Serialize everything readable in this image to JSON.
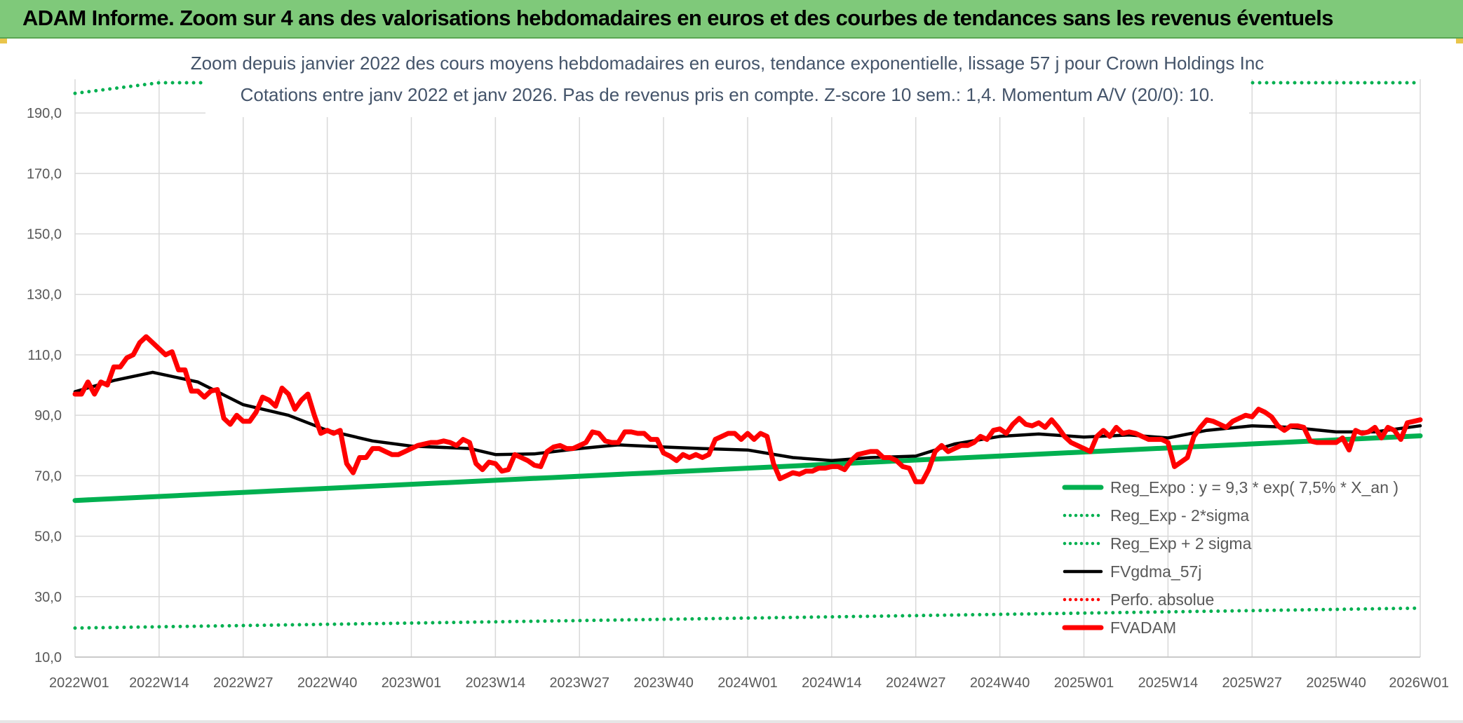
{
  "header": {
    "title": "ADAM Informe. Zoom sur 4 ans des valorisations hebdomadaires en euros et des courbes de tendances sans les revenus éventuels"
  },
  "colors": {
    "banner": "#7fc97a",
    "trend": "#00b050",
    "price": "#ff0000",
    "moving_average": "#000000",
    "grid": "#d9d9d9"
  },
  "chart_data": {
    "type": "line",
    "title_line1": "Zoom depuis janvier 2022 des cours moyens hebdomadaires en euros, tendance exponentielle, lissage 57 j pour Crown Holdings Inc",
    "title_line2": "Cotations entre janv 2022 et janv 2026. Pas de revenus pris en compte. Z-score 10 sem.: 1,4. Momentum A/V (20/0): 10.",
    "ylim": [
      10,
      200
    ],
    "y_ticks": [
      "10,0",
      "30,0",
      "50,0",
      "70,0",
      "90,0",
      "110,0",
      "130,0",
      "150,0",
      "170,0",
      "190,0"
    ],
    "x_ticks": [
      "2022W01",
      "2022W14",
      "2022W27",
      "2022W40",
      "2023W01",
      "2023W14",
      "2023W27",
      "2023W40",
      "2024W01",
      "2024W14",
      "2024W27",
      "2024W40",
      "2025W01",
      "2025W14",
      "2025W27",
      "2025W40",
      "2026W01"
    ],
    "grid": true,
    "legend_position": "bottom-right",
    "series": [
      {
        "name": "Reg_Expo : y = 9,3 * exp( 7,5% *  X_an )",
        "style": "solid-thick",
        "color": "#00b050",
        "points": [
          [
            "2022W01",
            61.8
          ],
          [
            "2026W01",
            83.2
          ]
        ]
      },
      {
        "name": "Reg_Exp - 2*sigma",
        "style": "dotted",
        "color": "#00b050",
        "points": [
          [
            "2022W01",
            19.6
          ],
          [
            "2026W01",
            26.2
          ]
        ]
      },
      {
        "name": "Reg_Exp + 2 sigma",
        "style": "dotted",
        "color": "#00b050",
        "points": [
          [
            "2022W01",
            196.5
          ],
          [
            "2022W14",
            200.0
          ],
          [
            "2026W01",
            200.0
          ]
        ]
      },
      {
        "name": "FVgdma_57j",
        "style": "solid",
        "color": "#000000",
        "points": [
          [
            "2022W01",
            97.8
          ],
          [
            "2022W07",
            101.5
          ],
          [
            "2022W13",
            104.2
          ],
          [
            "2022W20",
            101.0
          ],
          [
            "2022W27",
            93.5
          ],
          [
            "2022W34",
            90.0
          ],
          [
            "2022W40",
            85.0
          ],
          [
            "2022W47",
            81.5
          ],
          [
            "2023W01",
            79.8
          ],
          [
            "2023W10",
            79.0
          ],
          [
            "2023W14",
            77.0
          ],
          [
            "2023W20",
            77.2
          ],
          [
            "2023W27",
            79.0
          ],
          [
            "2023W33",
            80.2
          ],
          [
            "2023W40",
            79.5
          ],
          [
            "2023W46",
            79.0
          ],
          [
            "2024W01",
            78.5
          ],
          [
            "2024W08",
            76.0
          ],
          [
            "2024W14",
            75.0
          ],
          [
            "2024W20",
            76.0
          ],
          [
            "2024W27",
            76.5
          ],
          [
            "2024W33",
            80.5
          ],
          [
            "2024W40",
            83.0
          ],
          [
            "2024W46",
            83.8
          ],
          [
            "2025W01",
            82.8
          ],
          [
            "2025W08",
            83.5
          ],
          [
            "2025W14",
            82.5
          ],
          [
            "2025W20",
            85.0
          ],
          [
            "2025W27",
            86.5
          ],
          [
            "2025W33",
            86.0
          ],
          [
            "2025W40",
            84.5
          ],
          [
            "2025W46",
            84.5
          ],
          [
            "2026W01",
            86.5
          ]
        ]
      },
      {
        "name": "Perfo. absolue",
        "style": "dotted",
        "color": "#ff0000",
        "points": []
      },
      {
        "name": "FVADAM",
        "style": "solid-thick",
        "color": "#ff0000",
        "points": [
          [
            "2022W01",
            97
          ],
          [
            "2022W02",
            97
          ],
          [
            "2022W03",
            101
          ],
          [
            "2022W04",
            97
          ],
          [
            "2022W05",
            101
          ],
          [
            "2022W06",
            100
          ],
          [
            "2022W07",
            106
          ],
          [
            "2022W08",
            106
          ],
          [
            "2022W09",
            109
          ],
          [
            "2022W10",
            110
          ],
          [
            "2022W11",
            114
          ],
          [
            "2022W12",
            116
          ],
          [
            "2022W13",
            114
          ],
          [
            "2022W14",
            112
          ],
          [
            "2022W15",
            110
          ],
          [
            "2022W16",
            111
          ],
          [
            "2022W17",
            105
          ],
          [
            "2022W18",
            105
          ],
          [
            "2022W19",
            98
          ],
          [
            "2022W20",
            98
          ],
          [
            "2022W21",
            96
          ],
          [
            "2022W22",
            98
          ],
          [
            "2022W23",
            98.5
          ],
          [
            "2022W24",
            89
          ],
          [
            "2022W25",
            87
          ],
          [
            "2022W26",
            90
          ],
          [
            "2022W27",
            88
          ],
          [
            "2022W28",
            88
          ],
          [
            "2022W29",
            91
          ],
          [
            "2022W30",
            96
          ],
          [
            "2022W31",
            95
          ],
          [
            "2022W32",
            93
          ],
          [
            "2022W33",
            99
          ],
          [
            "2022W34",
            97
          ],
          [
            "2022W35",
            92
          ],
          [
            "2022W36",
            95
          ],
          [
            "2022W37",
            97
          ],
          [
            "2022W38",
            90
          ],
          [
            "2022W39",
            84
          ],
          [
            "2022W40",
            85
          ],
          [
            "2022W41",
            84
          ],
          [
            "2022W42",
            85
          ],
          [
            "2022W43",
            74
          ],
          [
            "2022W44",
            71
          ],
          [
            "2022W45",
            76
          ],
          [
            "2022W46",
            76
          ],
          [
            "2022W47",
            79
          ],
          [
            "2022W48",
            79
          ],
          [
            "2022W49",
            78
          ],
          [
            "2022W50",
            77
          ],
          [
            "2022W51",
            77
          ],
          [
            "2022W52",
            78
          ],
          [
            "2023W01",
            79
          ],
          [
            "2023W02",
            80
          ],
          [
            "2023W03",
            80.5
          ],
          [
            "2023W04",
            81
          ],
          [
            "2023W05",
            81
          ],
          [
            "2023W06",
            81.5
          ],
          [
            "2023W07",
            81
          ],
          [
            "2023W08",
            80
          ],
          [
            "2023W09",
            82
          ],
          [
            "2023W10",
            81
          ],
          [
            "2023W11",
            74
          ],
          [
            "2023W12",
            72
          ],
          [
            "2023W13",
            74.5
          ],
          [
            "2023W14",
            74
          ],
          [
            "2023W15",
            71.5
          ],
          [
            "2023W16",
            72
          ],
          [
            "2023W17",
            77
          ],
          [
            "2023W18",
            76
          ],
          [
            "2023W19",
            75
          ],
          [
            "2023W20",
            73.5
          ],
          [
            "2023W21",
            73
          ],
          [
            "2023W22",
            78
          ],
          [
            "2023W23",
            79.5
          ],
          [
            "2023W24",
            80
          ],
          [
            "2023W25",
            79
          ],
          [
            "2023W26",
            79
          ],
          [
            "2023W27",
            80
          ],
          [
            "2023W28",
            81
          ],
          [
            "2023W29",
            84.5
          ],
          [
            "2023W30",
            84
          ],
          [
            "2023W31",
            81.5
          ],
          [
            "2023W32",
            81
          ],
          [
            "2023W33",
            81
          ],
          [
            "2023W34",
            84.5
          ],
          [
            "2023W35",
            84.5
          ],
          [
            "2023W36",
            84
          ],
          [
            "2023W37",
            84
          ],
          [
            "2023W38",
            82
          ],
          [
            "2023W39",
            82
          ],
          [
            "2023W40",
            77.5
          ],
          [
            "2023W41",
            76.5
          ],
          [
            "2023W42",
            75
          ],
          [
            "2023W43",
            77
          ],
          [
            "2023W44",
            76
          ],
          [
            "2023W45",
            77
          ],
          [
            "2023W46",
            76
          ],
          [
            "2023W47",
            77
          ],
          [
            "2023W48",
            82
          ],
          [
            "2023W49",
            83
          ],
          [
            "2023W50",
            84
          ],
          [
            "2023W51",
            84
          ],
          [
            "2023W52",
            82
          ],
          [
            "2024W01",
            84
          ],
          [
            "2024W02",
            82
          ],
          [
            "2024W03",
            84
          ],
          [
            "2024W04",
            83
          ],
          [
            "2024W05",
            74
          ],
          [
            "2024W06",
            69
          ],
          [
            "2024W07",
            70
          ],
          [
            "2024W08",
            71
          ],
          [
            "2024W09",
            70.5
          ],
          [
            "2024W10",
            71.5
          ],
          [
            "2024W11",
            71.5
          ],
          [
            "2024W12",
            72.5
          ],
          [
            "2024W13",
            72.5
          ],
          [
            "2024W14",
            73
          ],
          [
            "2024W15",
            73
          ],
          [
            "2024W16",
            72
          ],
          [
            "2024W17",
            75
          ],
          [
            "2024W18",
            77
          ],
          [
            "2024W19",
            77.5
          ],
          [
            "2024W20",
            78
          ],
          [
            "2024W21",
            78
          ],
          [
            "2024W22",
            76
          ],
          [
            "2024W23",
            76
          ],
          [
            "2024W24",
            75
          ],
          [
            "2024W25",
            73
          ],
          [
            "2024W26",
            72.5
          ],
          [
            "2024W27",
            68
          ],
          [
            "2024W28",
            68
          ],
          [
            "2024W29",
            72
          ],
          [
            "2024W30",
            78
          ],
          [
            "2024W31",
            80
          ],
          [
            "2024W32",
            78
          ],
          [
            "2024W33",
            79
          ],
          [
            "2024W34",
            80
          ],
          [
            "2024W35",
            80
          ],
          [
            "2024W36",
            81
          ],
          [
            "2024W37",
            83
          ],
          [
            "2024W38",
            82
          ],
          [
            "2024W39",
            85
          ],
          [
            "2024W40",
            85.5
          ],
          [
            "2024W41",
            84
          ],
          [
            "2024W42",
            87
          ],
          [
            "2024W43",
            89
          ],
          [
            "2024W44",
            87
          ],
          [
            "2024W45",
            86.5
          ],
          [
            "2024W46",
            87.5
          ],
          [
            "2024W47",
            86
          ],
          [
            "2024W48",
            88.5
          ],
          [
            "2024W49",
            86
          ],
          [
            "2024W50",
            83
          ],
          [
            "2024W51",
            81
          ],
          [
            "2024W52",
            80
          ],
          [
            "2025W01",
            79
          ],
          [
            "2025W02",
            78
          ],
          [
            "2025W03",
            83
          ],
          [
            "2025W04",
            85
          ],
          [
            "2025W05",
            83
          ],
          [
            "2025W06",
            86
          ],
          [
            "2025W07",
            84
          ],
          [
            "2025W08",
            84.5
          ],
          [
            "2025W09",
            84
          ],
          [
            "2025W10",
            83
          ],
          [
            "2025W11",
            82
          ],
          [
            "2025W12",
            82
          ],
          [
            "2025W13",
            82
          ],
          [
            "2025W14",
            81
          ],
          [
            "2025W15",
            73
          ],
          [
            "2025W16",
            74.5
          ],
          [
            "2025W17",
            76
          ],
          [
            "2025W18",
            83
          ],
          [
            "2025W19",
            86
          ],
          [
            "2025W20",
            88.5
          ],
          [
            "2025W21",
            88
          ],
          [
            "2025W22",
            87
          ],
          [
            "2025W23",
            86
          ],
          [
            "2025W24",
            88
          ],
          [
            "2025W25",
            89
          ],
          [
            "2025W26",
            90
          ],
          [
            "2025W27",
            89.5
          ],
          [
            "2025W28",
            92
          ],
          [
            "2025W29",
            91
          ],
          [
            "2025W30",
            89.5
          ],
          [
            "2025W31",
            86.5
          ],
          [
            "2025W32",
            85
          ],
          [
            "2025W33",
            86.5
          ],
          [
            "2025W34",
            86.5
          ],
          [
            "2025W35",
            86
          ],
          [
            "2025W36",
            81.5
          ],
          [
            "2025W37",
            81
          ],
          [
            "2025W38",
            81
          ],
          [
            "2025W39",
            81
          ],
          [
            "2025W40",
            81
          ],
          [
            "2025W41",
            82.5
          ],
          [
            "2025W42",
            78.5
          ],
          [
            "2025W43",
            85
          ],
          [
            "2025W44",
            84
          ],
          [
            "2025W45",
            84.5
          ],
          [
            "2025W46",
            86
          ],
          [
            "2025W47",
            82.5
          ],
          [
            "2025W48",
            86
          ],
          [
            "2025W49",
            85
          ],
          [
            "2025W50",
            82
          ],
          [
            "2025W51",
            87.5
          ],
          [
            "2025W52",
            88
          ],
          [
            "2026W01",
            88.5
          ]
        ]
      }
    ]
  }
}
